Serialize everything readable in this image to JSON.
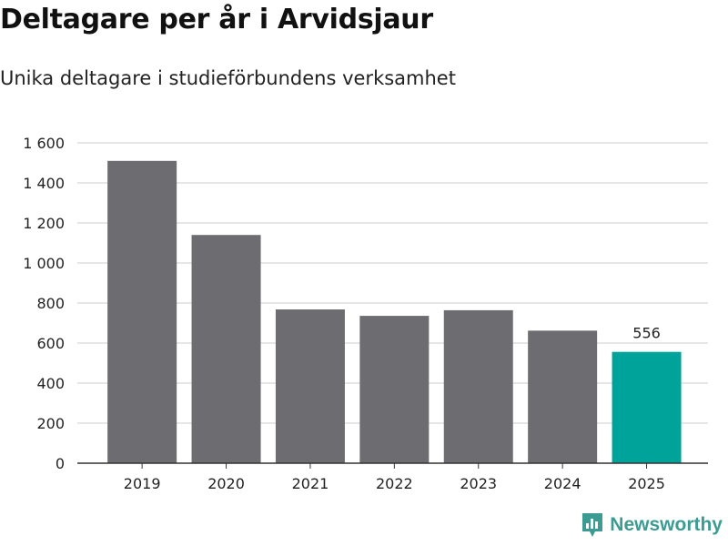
{
  "header": {
    "title": "Deltagare per år i Arvidsjaur",
    "subtitle": "Unika deltagare i studieförbundens verksamhet"
  },
  "brand": {
    "name": "Newsworthy",
    "color": "#3c9c93"
  },
  "chart_data": {
    "type": "bar",
    "title": "Deltagare per år i Arvidsjaur",
    "subtitle": "Unika deltagare i studieförbundens verksamhet",
    "xlabel": "",
    "ylabel": "",
    "categories": [
      "2019",
      "2020",
      "2021",
      "2022",
      "2023",
      "2024",
      "2025"
    ],
    "values": [
      1510,
      1140,
      768,
      736,
      764,
      662,
      556
    ],
    "ylim": [
      0,
      1600
    ],
    "yticks": [
      0,
      200,
      400,
      600,
      800,
      1000,
      1200,
      1400,
      1600
    ],
    "ytick_labels": [
      "0",
      "200",
      "400",
      "600",
      "800",
      "1 000",
      "1 200",
      "1 400",
      "1 600"
    ],
    "highlight_index": 6,
    "data_labels": [
      {
        "index": 6,
        "text": "556"
      }
    ],
    "colors": {
      "default": "#6d6c71",
      "highlight": "#00a39a",
      "grid": "#dddddd"
    },
    "grid": true
  }
}
